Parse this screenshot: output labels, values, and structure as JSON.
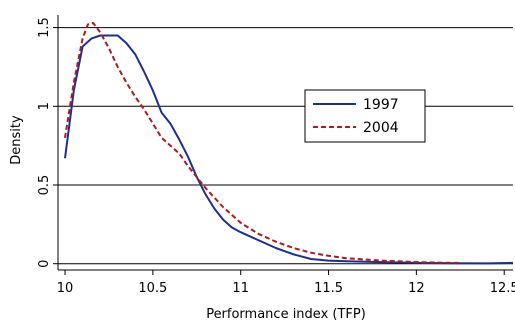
{
  "chart_data": {
    "type": "line",
    "xlabel": "Performance index (TFP)",
    "ylabel": "Density",
    "xlim": [
      9.96,
      12.55
    ],
    "ylim": [
      -0.04,
      1.58
    ],
    "x_ticks": [
      10,
      10.5,
      11,
      11.5,
      12,
      12.5
    ],
    "x_tick_labels": [
      "10",
      "10.5",
      "11",
      "11.5",
      "12",
      "12.5"
    ],
    "y_ticks": [
      0,
      0.5,
      1,
      1.5
    ],
    "y_tick_labels": [
      "0",
      "0.5",
      "1",
      "1.5"
    ],
    "grid": "horizontal",
    "legend_position": "right",
    "series": [
      {
        "name": "1997",
        "color": "#1f2f8f",
        "style": "solid",
        "x": [
          10.0,
          10.05,
          10.1,
          10.15,
          10.2,
          10.25,
          10.3,
          10.35,
          10.4,
          10.45,
          10.5,
          10.55,
          10.6,
          10.65,
          10.7,
          10.75,
          10.8,
          10.85,
          10.9,
          10.95,
          11.0,
          11.1,
          11.2,
          11.3,
          11.4,
          11.5,
          11.6,
          11.8,
          12.0,
          12.2,
          12.4,
          12.55
        ],
        "values": [
          0.67,
          1.1,
          1.38,
          1.43,
          1.45,
          1.45,
          1.45,
          1.4,
          1.33,
          1.22,
          1.1,
          0.96,
          0.89,
          0.79,
          0.68,
          0.55,
          0.44,
          0.35,
          0.28,
          0.23,
          0.2,
          0.15,
          0.1,
          0.06,
          0.03,
          0.02,
          0.015,
          0.01,
          0.005,
          0.003,
          0.002,
          0.005
        ]
      },
      {
        "name": "2004",
        "color": "#b11a1a",
        "style": "dashed",
        "x": [
          10.0,
          10.05,
          10.1,
          10.13,
          10.16,
          10.2,
          10.25,
          10.3,
          10.35,
          10.4,
          10.45,
          10.5,
          10.55,
          10.6,
          10.65,
          10.7,
          10.75,
          10.8,
          10.85,
          10.9,
          10.95,
          11.0,
          11.1,
          11.2,
          11.3,
          11.4,
          11.5,
          11.6,
          11.8,
          12.0,
          12.2,
          12.25
        ],
        "values": [
          0.8,
          1.15,
          1.43,
          1.52,
          1.53,
          1.47,
          1.37,
          1.25,
          1.15,
          1.06,
          0.98,
          0.89,
          0.8,
          0.75,
          0.7,
          0.62,
          0.55,
          0.48,
          0.42,
          0.36,
          0.31,
          0.26,
          0.19,
          0.14,
          0.1,
          0.07,
          0.05,
          0.035,
          0.02,
          0.01,
          0.005,
          0.005
        ]
      }
    ]
  }
}
